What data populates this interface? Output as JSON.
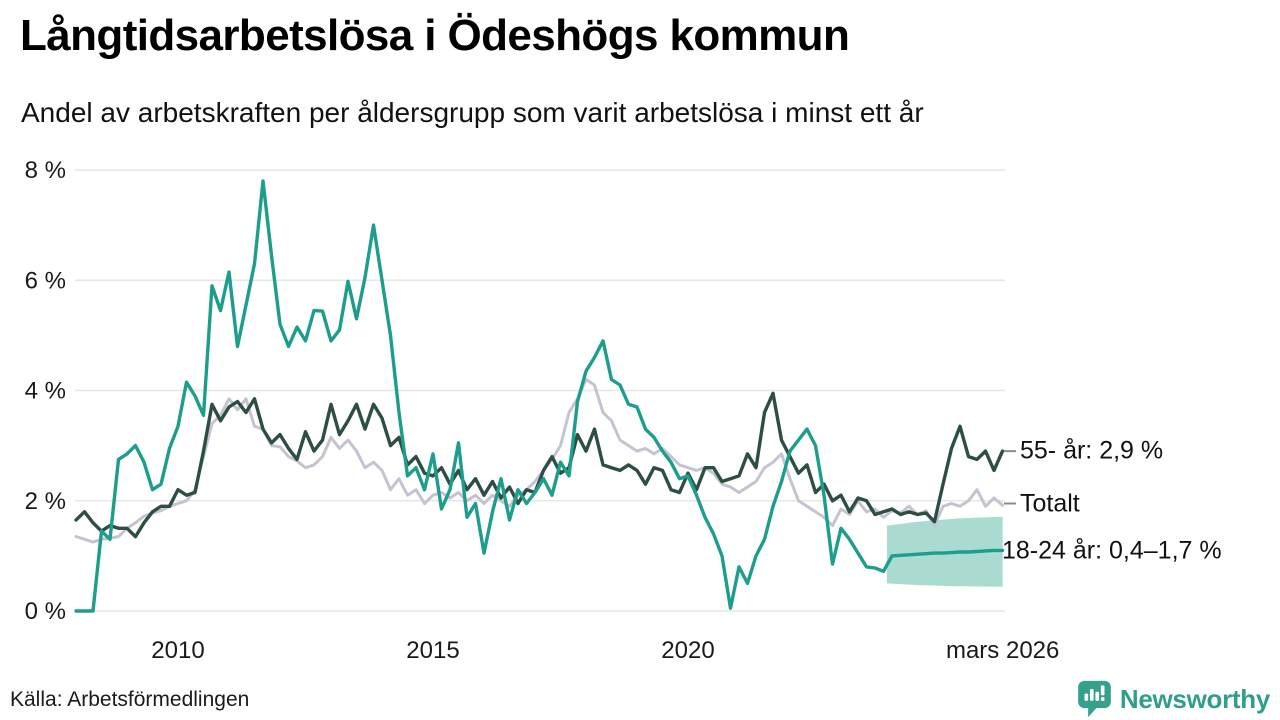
{
  "header": {
    "title": "Långtidsarbetslösa i Ödeshögs kommun",
    "subtitle": "Andel av arbetskraften per åldersgrupp som varit arbetslösa i minst ett år"
  },
  "footer": {
    "source": "Källa: Arbetsförmedlingen",
    "logo_text": "Newsworthy"
  },
  "colors": {
    "age_18_24": "#1d9d8b",
    "age_55": "#2c4e44",
    "total": "#c5c3d1",
    "forecast_band": "#a9dbd1",
    "grid": "#e6e6e8",
    "text": "#1a1a1a",
    "tick_dash": "#8a8a8a",
    "logo": "#35a08c"
  },
  "chart_data": {
    "type": "line",
    "title": "Långtidsarbetslösa i Ödeshögs kommun",
    "subtitle": "Andel av arbetskraften per åldersgrupp som varit arbetslösa i minst ett år",
    "unit": "% av arbetskraften",
    "x_start": 2008.0,
    "x_step": 0.1666667,
    "x_end": 2026.17,
    "ylim": [
      0,
      8
    ],
    "grid": "horizontal",
    "legend_position": "right-end-labels",
    "y_ticks": [
      {
        "value": 0,
        "label": "0 %"
      },
      {
        "value": 2,
        "label": "2 %"
      },
      {
        "value": 4,
        "label": "4 %"
      },
      {
        "value": 6,
        "label": "6 %"
      },
      {
        "value": 8,
        "label": "8 %"
      }
    ],
    "x_ticks": [
      {
        "value": 2010,
        "label": "2010"
      },
      {
        "value": 2015,
        "label": "2015"
      },
      {
        "value": 2020,
        "label": "2020"
      },
      {
        "value": 2026.17,
        "label": "mars 2026"
      }
    ],
    "series": [
      {
        "id": "total",
        "name": "Totalt",
        "color": "#c5c3d1",
        "values": [
          1.35,
          1.3,
          1.25,
          1.3,
          1.32,
          1.35,
          1.5,
          1.6,
          1.72,
          1.78,
          1.82,
          1.9,
          1.95,
          2.0,
          2.2,
          2.8,
          3.4,
          3.55,
          3.85,
          3.65,
          3.85,
          3.35,
          3.3,
          3.0,
          2.98,
          2.8,
          2.72,
          2.6,
          2.65,
          2.8,
          3.15,
          2.95,
          3.1,
          2.9,
          2.6,
          2.7,
          2.55,
          2.2,
          2.4,
          2.1,
          2.2,
          1.95,
          2.1,
          2.15,
          2.05,
          2.15,
          2.0,
          2.1,
          1.95,
          2.1,
          2.0,
          1.9,
          2.1,
          2.2,
          2.35,
          2.55,
          2.75,
          3.0,
          3.6,
          3.85,
          4.2,
          4.1,
          3.6,
          3.45,
          3.1,
          3.0,
          2.9,
          2.95,
          2.85,
          2.95,
          2.8,
          2.65,
          2.6,
          2.55,
          2.6,
          2.5,
          2.3,
          2.25,
          2.15,
          2.25,
          2.35,
          2.6,
          2.7,
          2.85,
          2.4,
          2.0,
          1.9,
          1.8,
          1.7,
          1.55,
          1.85,
          1.75,
          2.0,
          1.8,
          1.85,
          1.7,
          1.82,
          1.78,
          1.9,
          1.75,
          1.82,
          1.55,
          1.9,
          1.95,
          1.9,
          2.0,
          2.2,
          1.9,
          2.05,
          1.92
        ]
      },
      {
        "id": "age_55",
        "name": "55- år",
        "color": "#2c4e44",
        "values": [
          1.65,
          1.8,
          1.6,
          1.45,
          1.55,
          1.5,
          1.5,
          1.35,
          1.6,
          1.8,
          1.9,
          1.9,
          2.2,
          2.1,
          2.15,
          2.9,
          3.75,
          3.45,
          3.7,
          3.8,
          3.6,
          3.85,
          3.3,
          3.05,
          3.2,
          2.95,
          2.75,
          3.25,
          2.9,
          3.1,
          3.75,
          3.2,
          3.45,
          3.75,
          3.3,
          3.75,
          3.5,
          3.0,
          3.15,
          2.65,
          2.8,
          2.5,
          2.45,
          2.6,
          2.3,
          2.55,
          2.2,
          2.4,
          2.1,
          2.35,
          2.05,
          2.25,
          1.95,
          2.2,
          2.15,
          2.55,
          2.8,
          2.5,
          2.6,
          3.2,
          2.9,
          3.3,
          2.65,
          2.6,
          2.55,
          2.65,
          2.55,
          2.3,
          2.6,
          2.55,
          2.2,
          2.15,
          2.5,
          2.2,
          2.6,
          2.6,
          2.35,
          2.4,
          2.45,
          2.85,
          2.6,
          3.6,
          3.95,
          3.1,
          2.8,
          2.5,
          2.65,
          2.15,
          2.3,
          2.0,
          2.1,
          1.8,
          2.05,
          2.0,
          1.75,
          1.8,
          1.85,
          1.75,
          1.8,
          1.75,
          1.78,
          1.62,
          2.3,
          2.95,
          3.35,
          2.8,
          2.75,
          2.9,
          2.55,
          2.9
        ]
      },
      {
        "id": "age_18_24",
        "name": "18-24 år",
        "color": "#1d9d8b",
        "values": [
          0,
          0,
          0,
          1.45,
          1.3,
          2.75,
          2.85,
          3.0,
          2.7,
          2.2,
          2.3,
          2.95,
          3.35,
          4.15,
          3.9,
          3.55,
          5.9,
          5.45,
          6.15,
          4.8,
          5.55,
          6.3,
          7.8,
          6.45,
          5.2,
          4.8,
          5.15,
          4.9,
          5.45,
          5.44,
          4.9,
          5.1,
          5.98,
          5.3,
          6.05,
          7.0,
          6.0,
          5.0,
          3.6,
          2.45,
          2.6,
          2.2,
          2.85,
          1.85,
          2.2,
          3.05,
          1.7,
          1.95,
          1.05,
          1.8,
          2.4,
          1.65,
          2.2,
          1.95,
          2.15,
          2.4,
          2.1,
          2.7,
          2.45,
          3.8,
          4.35,
          4.6,
          4.9,
          4.2,
          4.1,
          3.75,
          3.7,
          3.3,
          3.15,
          2.9,
          2.7,
          2.4,
          2.45,
          2.1,
          1.7,
          1.4,
          1.0,
          0.05,
          0.8,
          0.5,
          1.0,
          1.3,
          1.9,
          2.35,
          2.9,
          3.1,
          3.3,
          3.0,
          2.1,
          0.85,
          1.5,
          1.3,
          1.05,
          0.8,
          0.78,
          0.72,
          1.0,
          1.01,
          1.02,
          1.03,
          1.04,
          1.05,
          1.05,
          1.06,
          1.07,
          1.07,
          1.08,
          1.09,
          1.1,
          1.1
        ]
      }
    ],
    "forecast_band": {
      "series": "age_18_24",
      "color": "#a9dbd1",
      "x": [
        2023.9,
        2024.5,
        2025.3,
        2026.17
      ],
      "upper": [
        1.55,
        1.62,
        1.68,
        1.71
      ],
      "lower": [
        0.5,
        0.47,
        0.45,
        0.44
      ]
    },
    "annotations": [
      {
        "id": "age_55",
        "label": "55- år: 2,9 %",
        "value_pct": 2.9,
        "dash": true
      },
      {
        "id": "total",
        "label": "Totalt",
        "value_pct": 1.95,
        "dash": true
      },
      {
        "id": "age_18_24",
        "label": "18-24 år: 0,4–1,7 %",
        "value_pct": 1.08,
        "dash": false
      }
    ]
  }
}
